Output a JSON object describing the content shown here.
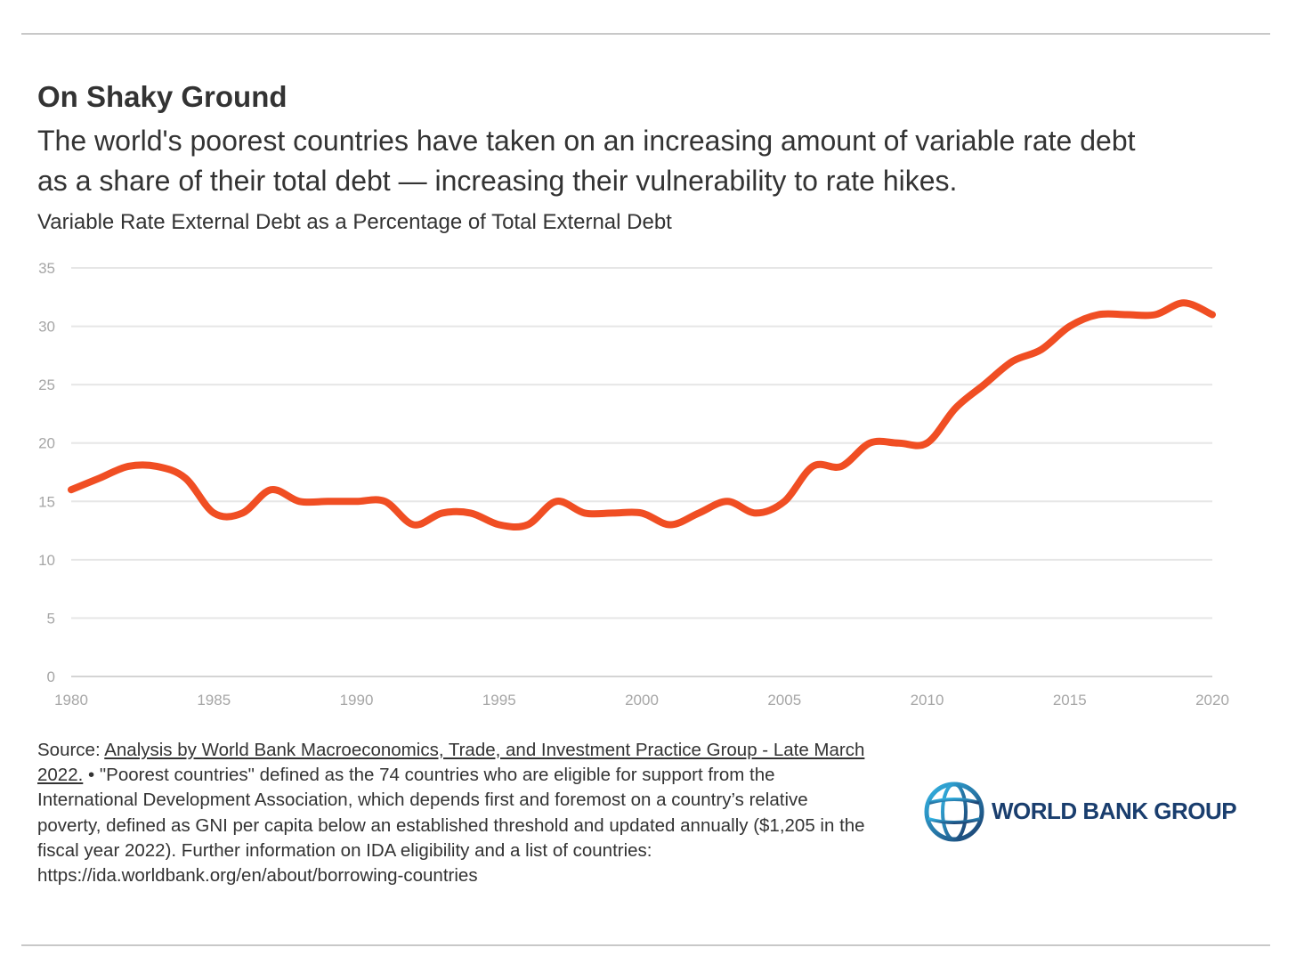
{
  "header": {
    "title": "On Shaky Ground",
    "subtitle_line1": "The world's poorest countries have taken on an increasing amount of variable rate debt",
    "subtitle_line2": "as a share of their total debt — increasing their vulnerability to rate hikes."
  },
  "chart_data": {
    "type": "line",
    "title": "Variable Rate External Debt as a Percentage of Total External Debt",
    "xlabel": "",
    "ylabel": "",
    "xlim": [
      1980,
      2020
    ],
    "ylim": [
      0,
      35
    ],
    "grid": true,
    "legend": "none",
    "x_ticks": [
      "1980",
      "1985",
      "1990",
      "1995",
      "2000",
      "2005",
      "2010",
      "2015",
      "2020"
    ],
    "y_ticks": [
      "0",
      "5",
      "10",
      "15",
      "20",
      "25",
      "30",
      "35"
    ],
    "line_color": "#f04e23",
    "series": [
      {
        "name": "Variable rate external debt share",
        "x": [
          1980,
          1981,
          1982,
          1983,
          1984,
          1985,
          1986,
          1987,
          1988,
          1989,
          1990,
          1991,
          1992,
          1993,
          1994,
          1995,
          1996,
          1997,
          1998,
          1999,
          2000,
          2001,
          2002,
          2003,
          2004,
          2005,
          2006,
          2007,
          2008,
          2009,
          2010,
          2011,
          2012,
          2013,
          2014,
          2015,
          2016,
          2017,
          2018,
          2019,
          2020
        ],
        "values": [
          16,
          17,
          18,
          18,
          17,
          14,
          14,
          16,
          15,
          15,
          15,
          15,
          13,
          14,
          14,
          13,
          13,
          15,
          14,
          14,
          14,
          13,
          14,
          15,
          14,
          15,
          18,
          18,
          20,
          20,
          20,
          23,
          25,
          27,
          28,
          30,
          31,
          31,
          31,
          32,
          31
        ]
      }
    ]
  },
  "footer": {
    "source_prefix": "Source: ",
    "source_link_line1": "Analysis by World Bank Macroeconomics, Trade, and Investment Practice Group - Late March",
    "source_link_line2": "2022.",
    "line2_rest": " • \"Poorest countries\" defined as the 74 countries who are eligible for support from the",
    "line3": "International Development Association, which depends first and foremost on a country’s relative",
    "line4": "poverty, defined as GNI per capita below an established threshold and updated annually ($1,205 in the",
    "line5": "fiscal year 2022). Further information on IDA eligibility and a list of countries:",
    "line6": "https://ida.worldbank.org/en/about/borrowing-countries"
  },
  "logo": {
    "text": "WORLD BANK GROUP"
  }
}
